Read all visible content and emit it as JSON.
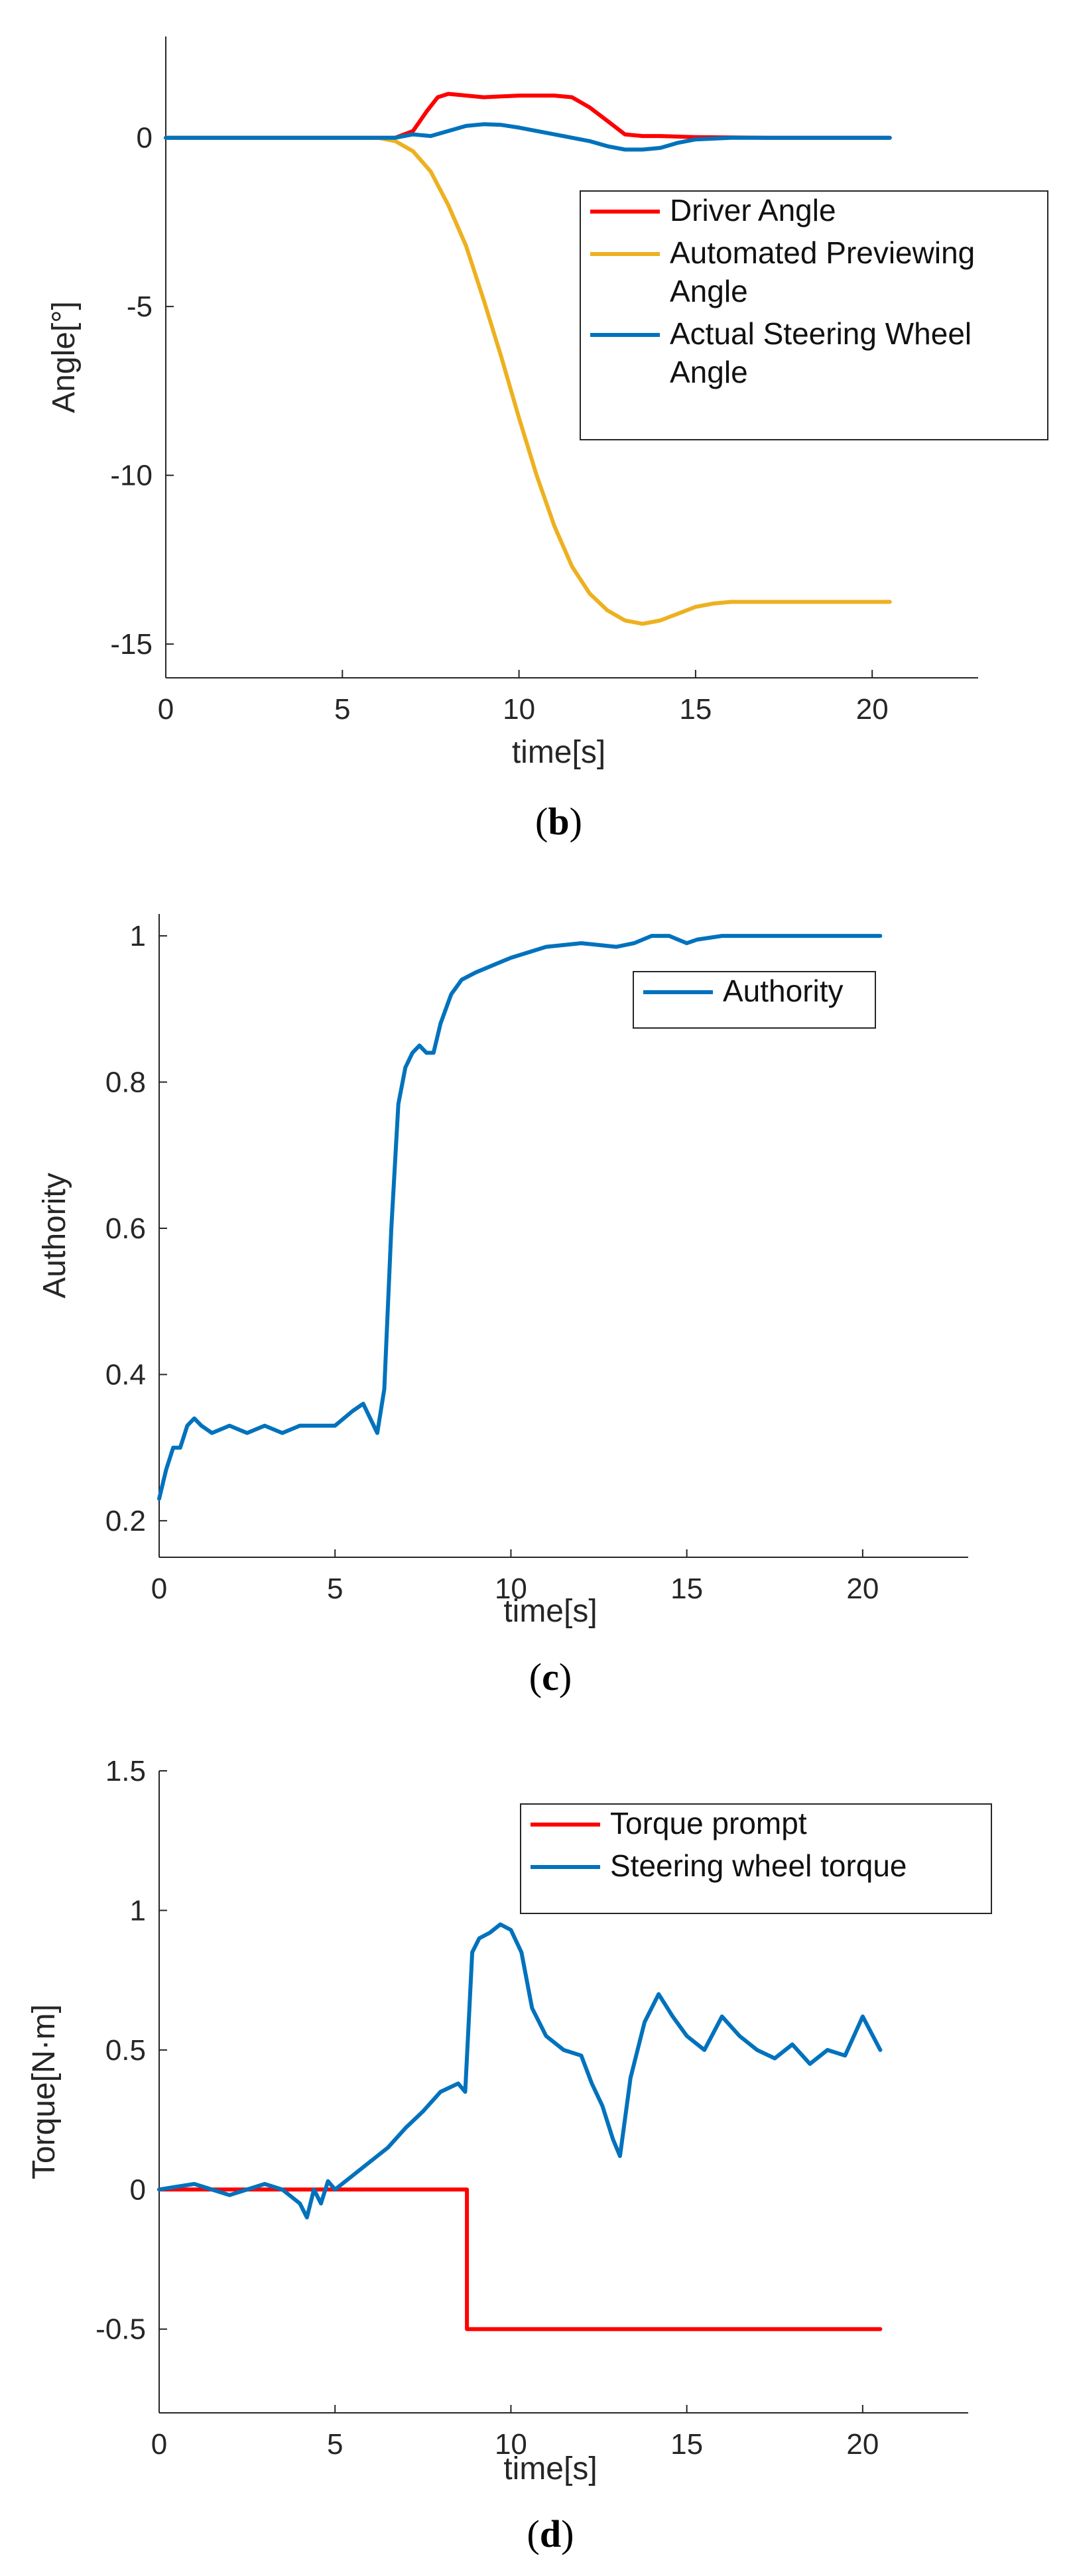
{
  "colors": {
    "red": "#ff0000",
    "yellow": "#edb120",
    "blue": "#0072bd",
    "axis": "#262626",
    "legend_border": "#262626"
  },
  "chart_data": [
    {
      "id": "b",
      "type": "line",
      "caption_prefix": "(",
      "caption_letter": "b",
      "caption_suffix": ")",
      "xlabel": "time[s]",
      "ylabel": "Angle[°]",
      "xlim": [
        0,
        23
      ],
      "ylim": [
        -16,
        3
      ],
      "xticks": [
        0,
        5,
        10,
        15,
        20
      ],
      "xtick_labels": [
        "0",
        "5",
        "10",
        "15",
        "20"
      ],
      "yticks": [
        0,
        -5,
        -10,
        -15
      ],
      "ytick_labels": [
        "0",
        "-5",
        "-10",
        "-15"
      ],
      "legend": {
        "position": "top-right",
        "entries": [
          {
            "label_lines": [
              "Driver Angle"
            ],
            "color": "red"
          },
          {
            "label_lines": [
              "Automated Previewing",
              "Angle"
            ],
            "color": "yellow"
          },
          {
            "label_lines": [
              "Actual Steering Wheel",
              "Angle"
            ],
            "color": "blue"
          }
        ]
      },
      "series": [
        {
          "name": "Driver Angle",
          "color": "red",
          "x": [
            0,
            6.5,
            7,
            7.4,
            7.7,
            8,
            9,
            10,
            11,
            11.5,
            12,
            12.5,
            13,
            13.5,
            14,
            15,
            17,
            20.5
          ],
          "y": [
            0,
            0,
            0.2,
            0.8,
            1.2,
            1.3,
            1.2,
            1.25,
            1.25,
            1.2,
            0.9,
            0.5,
            0.1,
            0.05,
            0.05,
            0.02,
            0,
            0
          ]
        },
        {
          "name": "Automated Previewing Angle",
          "color": "yellow",
          "x": [
            0,
            6,
            6.5,
            7,
            7.5,
            8,
            8.5,
            9,
            9.5,
            10,
            10.5,
            11,
            11.5,
            12,
            12.5,
            13,
            13.5,
            14,
            14.5,
            15,
            15.5,
            16,
            18,
            20.5
          ],
          "y": [
            0,
            0,
            -0.1,
            -0.4,
            -1,
            -2,
            -3.2,
            -4.8,
            -6.5,
            -8.3,
            -10,
            -11.5,
            -12.7,
            -13.5,
            -14,
            -14.3,
            -14.4,
            -14.3,
            -14.1,
            -13.9,
            -13.8,
            -13.75,
            -13.75,
            -13.75
          ]
        },
        {
          "name": "Actual Steering Wheel Angle",
          "color": "blue",
          "x": [
            0,
            6.5,
            7,
            7.5,
            8,
            8.5,
            9,
            9.5,
            10,
            11,
            12,
            12.5,
            13,
            13.5,
            14,
            14.5,
            15,
            16,
            18,
            20.5
          ],
          "y": [
            0,
            0,
            0.1,
            0.05,
            0.2,
            0.35,
            0.4,
            0.38,
            0.3,
            0.1,
            -0.1,
            -0.25,
            -0.35,
            -0.35,
            -0.3,
            -0.15,
            -0.05,
            0,
            0,
            0
          ]
        }
      ]
    },
    {
      "id": "c",
      "type": "line",
      "caption_prefix": "(",
      "caption_letter": "c",
      "caption_suffix": ")",
      "xlabel": "time[s]",
      "ylabel": "Authority",
      "xlim": [
        0,
        23
      ],
      "ylim": [
        0.15,
        1.03
      ],
      "xticks": [
        0,
        5,
        10,
        15,
        20
      ],
      "xtick_labels": [
        "0",
        "5",
        "10",
        "15",
        "20"
      ],
      "yticks": [
        0.2,
        0.4,
        0.6,
        0.8,
        1
      ],
      "ytick_labels": [
        "0.2",
        "0.4",
        "0.6",
        "0.8",
        "1"
      ],
      "legend": {
        "position": "top-right",
        "entries": [
          {
            "label_lines": [
              "Authority"
            ],
            "color": "blue"
          }
        ]
      },
      "series": [
        {
          "name": "Authority",
          "color": "blue",
          "x": [
            0,
            0.2,
            0.4,
            0.6,
            0.8,
            1,
            1.2,
            1.5,
            2,
            2.5,
            3,
            3.5,
            4,
            4.5,
            5,
            5.5,
            5.8,
            6,
            6.2,
            6.4,
            6.6,
            6.8,
            7,
            7.2,
            7.4,
            7.6,
            7.8,
            8,
            8.3,
            8.6,
            9,
            10,
            11,
            12,
            13,
            13.5,
            14,
            14.5,
            15,
            15.3,
            16,
            18,
            20.5
          ],
          "y": [
            0.23,
            0.27,
            0.3,
            0.3,
            0.33,
            0.34,
            0.33,
            0.32,
            0.33,
            0.32,
            0.33,
            0.32,
            0.33,
            0.33,
            0.33,
            0.35,
            0.36,
            0.34,
            0.32,
            0.38,
            0.6,
            0.77,
            0.82,
            0.84,
            0.85,
            0.84,
            0.84,
            0.88,
            0.92,
            0.94,
            0.95,
            0.97,
            0.985,
            0.99,
            0.985,
            0.99,
            1,
            1,
            0.99,
            0.995,
            1,
            1,
            1
          ]
        }
      ]
    },
    {
      "id": "d",
      "type": "line",
      "caption_prefix": "(",
      "caption_letter": "d",
      "caption_suffix": ")",
      "xlabel": "time[s]",
      "ylabel": "Torque[N·m]",
      "xlim": [
        0,
        23
      ],
      "ylim": [
        -0.8,
        1.5
      ],
      "xticks": [
        0,
        5,
        10,
        15,
        20
      ],
      "xtick_labels": [
        "0",
        "5",
        "10",
        "15",
        "20"
      ],
      "yticks": [
        1.5,
        1,
        0.5,
        0,
        -0.5
      ],
      "ytick_labels": [
        "1.5",
        "1",
        "0.5",
        "0",
        "-0.5"
      ],
      "legend": {
        "position": "top-right",
        "entries": [
          {
            "label_lines": [
              "Torque prompt"
            ],
            "color": "red"
          },
          {
            "label_lines": [
              "Steering wheel torque"
            ],
            "color": "blue"
          }
        ]
      },
      "series": [
        {
          "name": "Torque prompt",
          "color": "red",
          "x": [
            0,
            8.75,
            8.75,
            20.5
          ],
          "y": [
            0,
            0,
            -0.5,
            -0.5
          ]
        },
        {
          "name": "Steering wheel torque",
          "color": "blue",
          "x": [
            0,
            1,
            2,
            3,
            3.5,
            4,
            4.2,
            4.4,
            4.6,
            4.8,
            5,
            5.5,
            6,
            6.5,
            7,
            7.5,
            8,
            8.5,
            8.7,
            8.9,
            9.1,
            9.4,
            9.7,
            10,
            10.3,
            10.6,
            11,
            11.5,
            12,
            12.3,
            12.6,
            12.9,
            13.1,
            13.4,
            13.8,
            14.2,
            14.6,
            15,
            15.5,
            16,
            16.5,
            17,
            17.5,
            18,
            18.5,
            19,
            19.5,
            20,
            20.5
          ],
          "y": [
            0,
            0.02,
            -0.02,
            0.02,
            0,
            -0.05,
            -0.1,
            0,
            -0.05,
            0.03,
            0,
            0.05,
            0.1,
            0.15,
            0.22,
            0.28,
            0.35,
            0.38,
            0.35,
            0.85,
            0.9,
            0.92,
            0.95,
            0.93,
            0.85,
            0.65,
            0.55,
            0.5,
            0.48,
            0.38,
            0.3,
            0.18,
            0.12,
            0.4,
            0.6,
            0.7,
            0.62,
            0.55,
            0.5,
            0.62,
            0.55,
            0.5,
            0.47,
            0.52,
            0.45,
            0.5,
            0.48,
            0.62,
            0.5
          ]
        }
      ]
    }
  ]
}
